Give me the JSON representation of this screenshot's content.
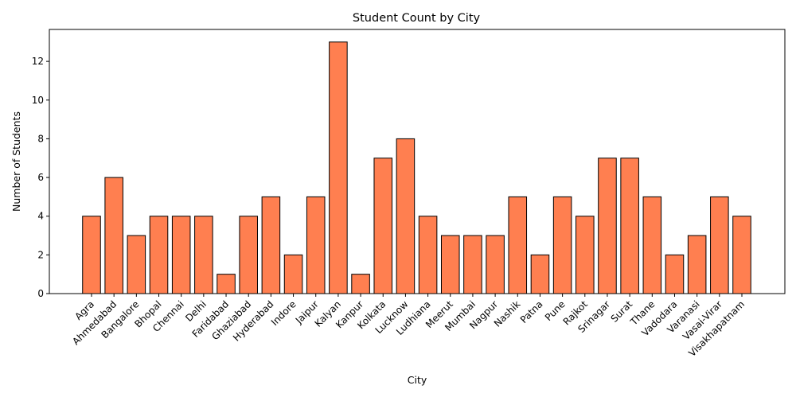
{
  "chart_data": {
    "type": "bar",
    "title": "Student Count by City",
    "xlabel": "City",
    "ylabel": "Number of Students",
    "categories": [
      "Agra",
      "Ahmedabad",
      "Bangalore",
      "Bhopal",
      "Chennai",
      "Delhi",
      "Faridabad",
      "Ghaziabad",
      "Hyderabad",
      "Indore",
      "Jaipur",
      "Kalyan",
      "Kanpur",
      "Kolkata",
      "Lucknow",
      "Ludhiana",
      "Meerut",
      "Mumbai",
      "Nagpur",
      "Nashik",
      "Patna",
      "Pune",
      "Rajkot",
      "Srinagar",
      "Surat",
      "Thane",
      "Vadodara",
      "Varanasi",
      "Vasai-Virar",
      "Visakhapatnam"
    ],
    "values": [
      4,
      6,
      3,
      4,
      4,
      4,
      1,
      4,
      5,
      2,
      5,
      13,
      1,
      7,
      8,
      4,
      3,
      3,
      3,
      5,
      2,
      5,
      4,
      7,
      7,
      5,
      2,
      3,
      5,
      4
    ],
    "yticks": [
      0,
      2,
      4,
      6,
      8,
      10,
      12
    ],
    "ylim": [
      0,
      13.65
    ],
    "bar_color": "#ff7f50",
    "edge_color": "#000000",
    "grid": false,
    "legend": "none"
  }
}
